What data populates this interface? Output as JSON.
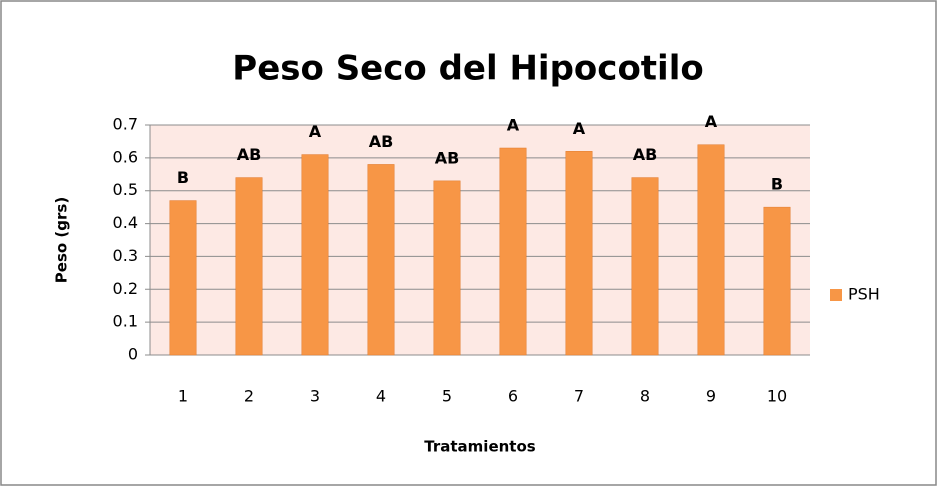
{
  "chart_data": {
    "type": "bar",
    "title": "Peso Seco del Hipocotilo",
    "x_label": "Tratamientos",
    "y_label": "Peso (grs)",
    "categories": [
      "1",
      "2",
      "3",
      "4",
      "5",
      "6",
      "7",
      "8",
      "9",
      "10"
    ],
    "series": [
      {
        "name": "PSH",
        "color": "#f79646",
        "values": [
          0.47,
          0.54,
          0.61,
          0.58,
          0.53,
          0.63,
          0.62,
          0.54,
          0.64,
          0.45
        ]
      }
    ],
    "annotations": [
      "B",
      "AB",
      "A",
      "AB",
      "AB",
      "A",
      "A",
      "AB",
      "A",
      "B"
    ],
    "ylim": [
      0,
      0.7
    ],
    "yticks": [
      0,
      0.1,
      0.2,
      0.3,
      0.4,
      0.5,
      0.6,
      0.7
    ],
    "grid": true,
    "legend": "right"
  }
}
